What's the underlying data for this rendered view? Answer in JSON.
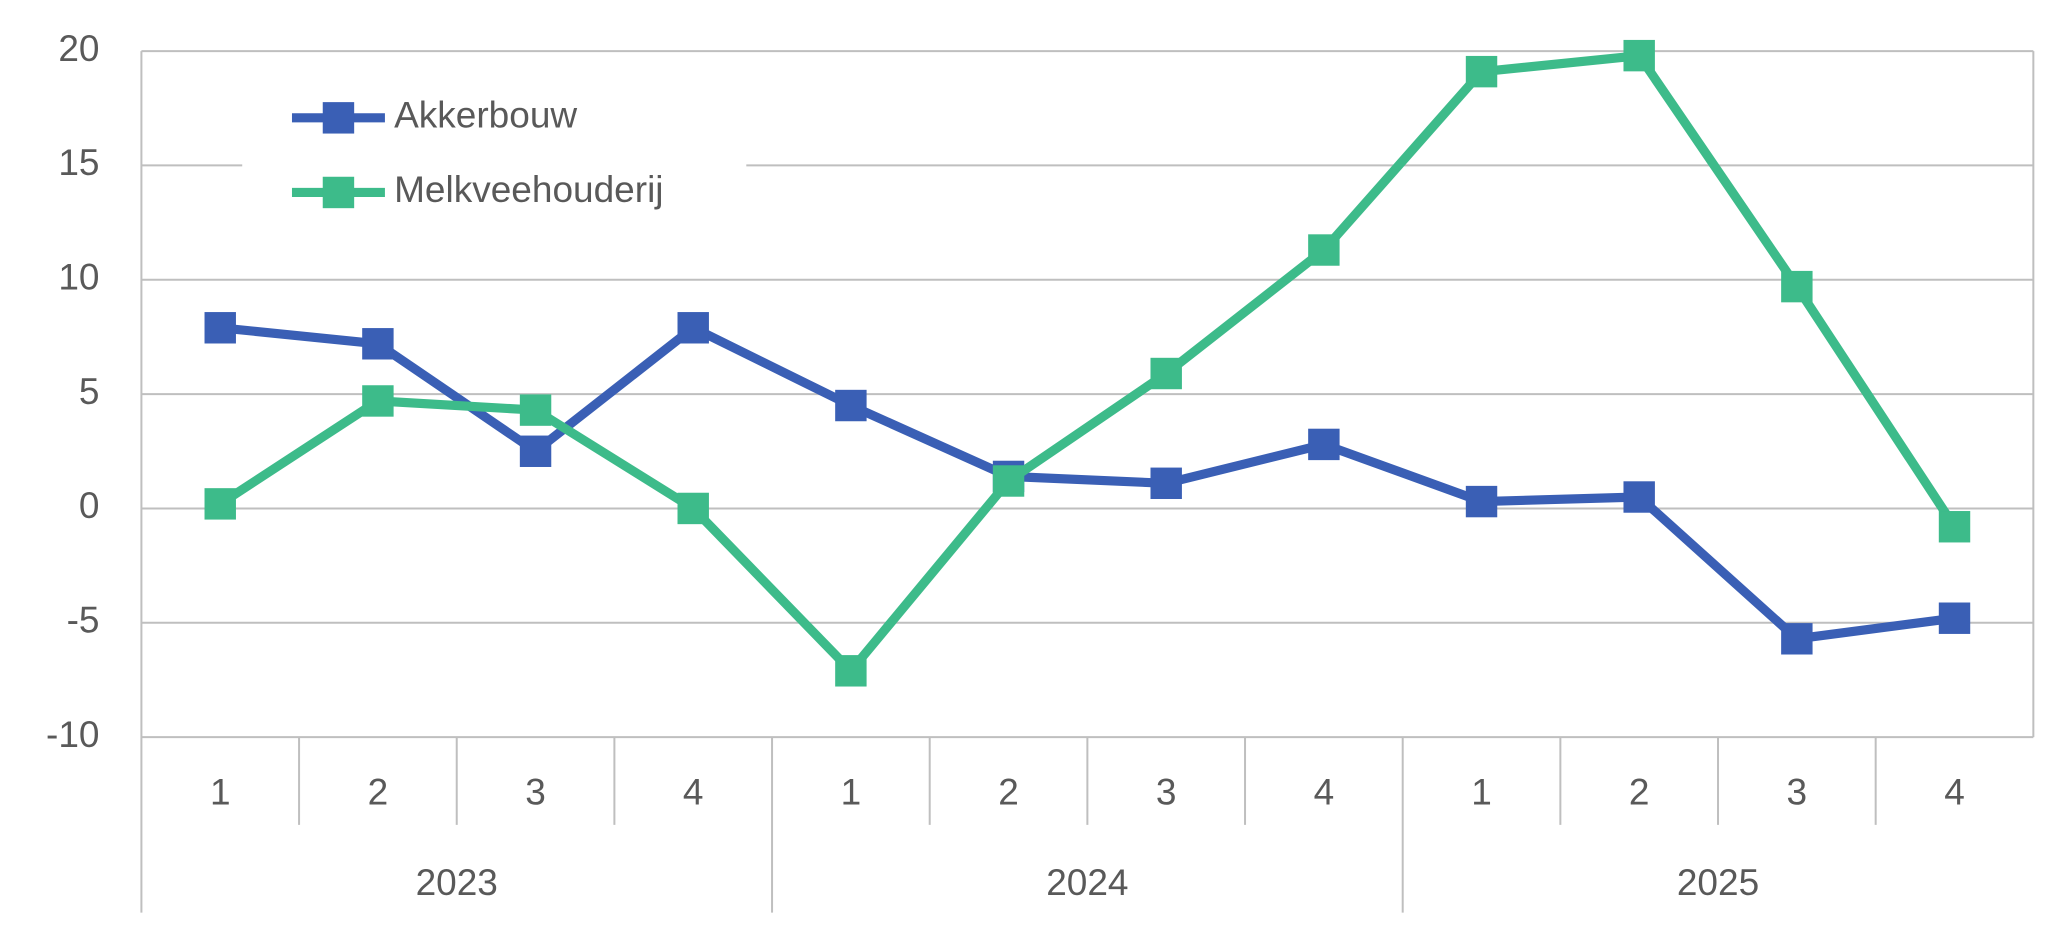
{
  "chart_data": {
    "type": "line",
    "categories": [
      "1",
      "2",
      "3",
      "4",
      "1",
      "2",
      "3",
      "4",
      "1",
      "2",
      "3",
      "4"
    ],
    "category_groups": [
      "2023",
      "2024",
      "2025"
    ],
    "series": [
      {
        "name": "Akkerbouw",
        "color": "#3a5fb5",
        "values": [
          7.9,
          7.2,
          2.5,
          7.9,
          4.5,
          1.4,
          1.1,
          2.8,
          0.3,
          0.5,
          -5.7,
          -4.8
        ]
      },
      {
        "name": "Melkveehouderij",
        "color": "#3dbb8a",
        "values": [
          0.2,
          4.7,
          4.3,
          0,
          -7.1,
          1.2,
          5.9,
          11.3,
          19.1,
          19.8,
          9.7,
          -0.8
        ]
      }
    ],
    "ylim": [
      -10,
      20
    ],
    "yticks": [
      20,
      15,
      10,
      5,
      0,
      -5,
      -10
    ],
    "grid": true,
    "legend": "top-left"
  }
}
